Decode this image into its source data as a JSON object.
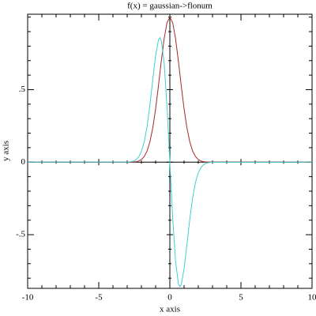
{
  "chart_data": {
    "type": "line",
    "title": "f(x) = gaussian->flonum",
    "x_label": "x axis",
    "y_label": "y axis",
    "x": [
      -10,
      -3,
      -2.8,
      -2.6,
      -2.4,
      -2.2,
      -2,
      -1.8,
      -1.6,
      -1.4,
      -1.2,
      -1,
      -0.8,
      -0.7,
      -0.6,
      -0.4,
      -0.2,
      0,
      0.2,
      0.4,
      0.6,
      0.7,
      0.8,
      1,
      1.2,
      1.4,
      1.6,
      1.8,
      2,
      2.2,
      2.4,
      2.6,
      2.8,
      3,
      10
    ],
    "series": [
      {
        "color": "#a52a2a",
        "values": [
          0,
          0.00012,
          0.00039,
          0.00116,
          0.00315,
          0.0079,
          0.0183,
          0.0392,
          0.0773,
          0.141,
          0.237,
          0.368,
          0.527,
          0.613,
          0.698,
          0.852,
          0.961,
          1,
          0.961,
          0.852,
          0.698,
          0.613,
          0.527,
          0.368,
          0.237,
          0.141,
          0.0773,
          0.0392,
          0.0183,
          0.0079,
          0.00315,
          0.00116,
          0.00039,
          0.00012,
          0
        ]
      },
      {
        "color": "#40d0d0",
        "values": [
          0,
          0.001,
          0.002,
          0.006,
          0.015,
          0.035,
          0.073,
          0.141,
          0.247,
          0.395,
          0.569,
          0.736,
          0.843,
          0.858,
          0.838,
          0.682,
          0.384,
          0,
          -0.384,
          -0.682,
          -0.838,
          -0.858,
          -0.843,
          -0.736,
          -0.569,
          -0.395,
          -0.247,
          -0.141,
          -0.073,
          -0.035,
          -0.015,
          -0.006,
          -0.002,
          -0.001,
          0
        ]
      }
    ],
    "xlim": [
      -10,
      10
    ],
    "ylim": [
      -0.87,
      1.02
    ],
    "xticks": [
      -10,
      -5,
      0,
      5,
      10
    ],
    "yticks": [
      {
        "value": -0.5,
        "label": "-.5"
      },
      0,
      {
        "value": 0.5,
        "label": ".5"
      }
    ],
    "xminor": [
      -9,
      -8,
      -7,
      -6,
      -4,
      -3,
      -2,
      -1,
      1,
      2,
      3,
      4,
      6,
      7,
      8,
      9
    ],
    "yminor": [
      -0.8,
      -0.7,
      -0.6,
      -0.4,
      -0.3,
      -0.2,
      -0.1,
      0.1,
      0.2,
      0.3,
      0.4,
      0.6,
      0.7,
      0.8,
      0.9,
      1
    ]
  }
}
